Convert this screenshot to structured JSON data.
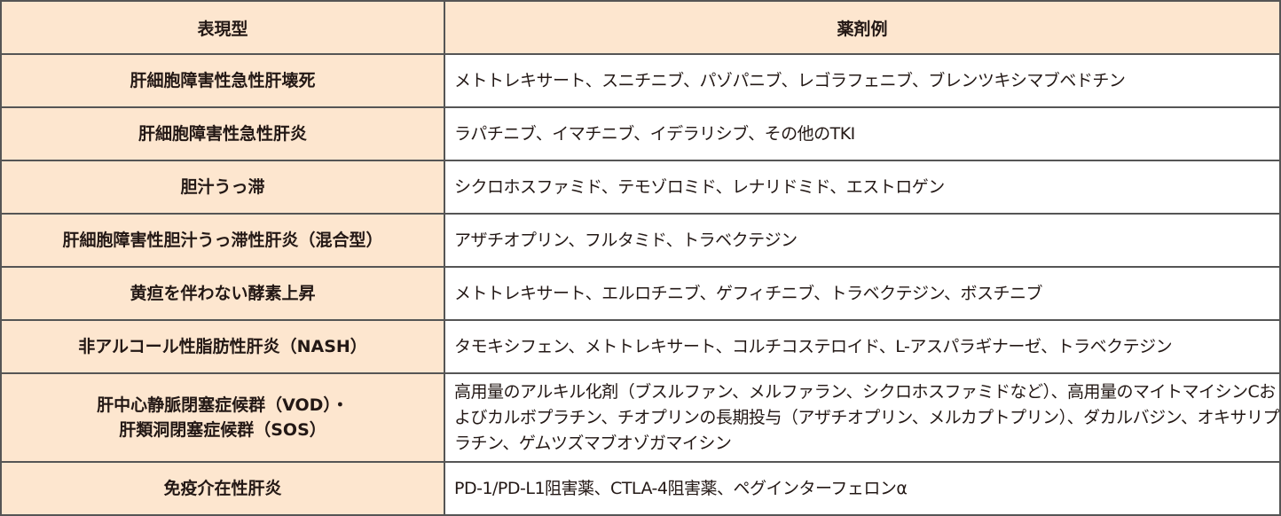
{
  "headers": {
    "phenotype": "表現型",
    "drugs": "薬剤例"
  },
  "rows": [
    {
      "phenotype": "肝細胞障害性急性肝壊死",
      "drugs": "メトトレキサート、スニチニブ、パゾパニブ、レゴラフェニブ、ブレンツキシマブベドチン"
    },
    {
      "phenotype": "肝細胞障害性急性肝炎",
      "drugs": "ラパチニブ、イマチニブ、イデラリシブ、その他のTKI"
    },
    {
      "phenotype": "胆汁うっ滞",
      "drugs": "シクロホスファミド、テモゾロミド、レナリドミド、エストロゲン"
    },
    {
      "phenotype": "肝細胞障害性胆汁うっ滞性肝炎（混合型）",
      "drugs": "アザチオプリン、フルタミド、トラベクテジン"
    },
    {
      "phenotype": "黄疸を伴わない酵素上昇",
      "drugs": "メトトレキサート、エルロチニブ、ゲフィチニブ、トラベクテジン、ボスチニブ"
    },
    {
      "phenotype": "非アルコール性脂肪性肝炎（NASH）",
      "drugs": "タモキシフェン、メトトレキサート、コルチコステロイド、L-アスパラギナーゼ、トラベクテジン"
    },
    {
      "phenotype_line1": "肝中心静脈閉塞症候群（VOD）・",
      "phenotype_line2": "肝類洞閉塞症候群（SOS）",
      "drugs": "高用量のアルキル化剤（ブスルファン、メルファラン、シクロホスファミドなど）、高用量のマイトマイシンCおよびカルボプラチン、チオプリンの長期投与（アザチオプリン、メルカプトプリン）、ダカルバジン、オキサリプラチン、ゲムツズマブオゾガマイシン"
    },
    {
      "phenotype": "免疫介在性肝炎",
      "drugs": "PD-1/PD-L1阻害薬、CTLA-4阻害薬、ペグインターフェロンα"
    }
  ]
}
